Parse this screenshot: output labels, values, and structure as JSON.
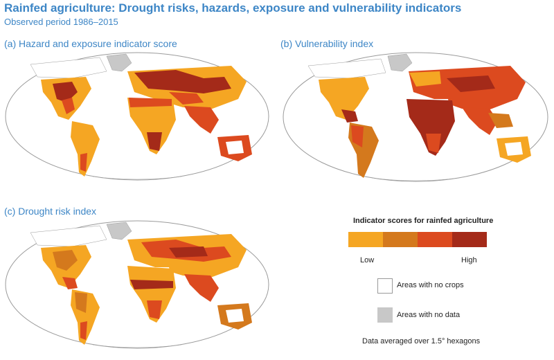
{
  "header": {
    "title": "Rainfed agriculture: Drought risks, hazards, exposure and vulnerability indicators",
    "subtitle": "Observed period 1986–2015"
  },
  "panels": [
    {
      "label": "(a) Hazard and exposure indicator score"
    },
    {
      "label": "(b) Vulnerability index"
    },
    {
      "label": "(c) Drought risk index"
    }
  ],
  "legend": {
    "title": "Indicator scores for rainfed agriculture",
    "low_label": "Low",
    "high_label": "High",
    "colors": [
      "#f5a623",
      "#d4791d",
      "#dc4a1f",
      "#a42a19"
    ],
    "no_crops_label": "Areas with no crops",
    "no_data_label": "Areas with no data",
    "no_crops_color": "#ffffff",
    "no_data_color": "#c8c8c8",
    "note": "Data averaged over 1.5° hexagons"
  },
  "colors": {
    "ocean": "#ffffff",
    "map_border": "#9a9a9a",
    "text_accent": "#3d86c6"
  }
}
